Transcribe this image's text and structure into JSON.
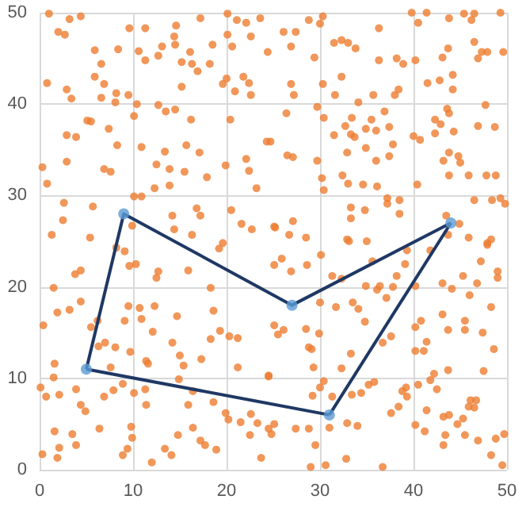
{
  "chart_data": {
    "type": "scatter",
    "xlim": [
      0,
      50
    ],
    "ylim": [
      0,
      50
    ],
    "xticks": [
      0,
      10,
      20,
      30,
      40,
      50
    ],
    "yticks": [
      0,
      10,
      20,
      30,
      40,
      50
    ],
    "grid": true,
    "marker": "circle",
    "series": [
      {
        "color": "#ed7d31",
        "x": [
          1.0,
          3.2,
          4.4,
          2.0,
          2.7,
          9.6,
          11.3,
          14.6,
          17.2,
          20.1,
          21.1,
          22.1,
          23.6,
          14.4,
          20.1,
          22.6,
          5.9,
          8.4,
          10.6,
          13.1,
          14.5,
          16.1,
          18.5,
          20.6,
          24.4,
          6.6,
          11.3,
          12.7,
          15.2,
          16.3,
          18.2,
          16.9,
          5.9,
          20.0,
          21.8,
          0.8,
          6.9,
          15.2,
          19.6,
          22.4,
          2.9,
          8.2,
          9.5,
          20.9,
          22.6,
          3.4,
          6.6,
          8.1,
          10.4,
          12.7,
          13.5,
          14.5,
          16.2,
          20.4,
          5.1,
          5.5,
          10.1,
          7.4,
          2.9,
          3.9,
          8.3,
          10.9,
          15.7,
          24.3,
          13.4,
          17.1,
          0.3,
          2.9,
          6.9,
          7.6,
          12.5,
          13.9,
          15.5,
          19.9,
          22.1,
          22.4,
          0.8,
          17.9,
          13.9,
          12.3,
          23.2,
          2.6,
          5.7,
          10.1,
          10.9,
          14.2,
          16.8,
          17.2,
          20.5,
          21.6,
          22.7,
          25.1,
          2.5,
          1.3,
          5.4,
          9.9,
          14.4,
          16.3,
          19.6,
          28.8,
          30.3,
          30.0,
          26.1,
          27.4,
          36.3,
          39.8,
          41.4,
          40.5,
          43.8,
          45.4,
          46.5,
          46.2,
          49.3,
          26.9,
          31.5,
          32.3,
          33.0,
          33.8,
          43.7,
          46.5,
          47.3,
          47.9,
          49.6,
          29.4,
          36.3,
          38.2,
          38.9,
          40.2,
          43.1,
          46.9,
          32.3,
          44.2,
          42.8,
          41.5,
          26.9,
          30.3,
          44.2,
          27.2,
          31.6,
          35.7,
          38.0,
          38.4,
          34.1,
          29.7,
          47.7,
          26.4,
          30.4,
          33.4,
          36.9,
          43.6,
          43.8,
          35.5,
          32.7,
          34.9,
          36.0,
          37.4,
          42.3,
          42.9,
          46.9,
          48.7,
          31.5,
          33.3,
          33.7,
          24.7,
          40.0,
          40.7,
          42.3,
          44.3,
          34.9,
          37.8,
          26.5,
          27.1,
          32.9,
          36.0,
          37.4,
          29.7,
          43.8,
          44.8,
          45.0,
          43.2,
          32.4,
          30.2,
          43.8,
          45.9,
          47.8,
          48.8,
          30.4,
          33.0,
          34.6,
          36.1,
          40.4,
          37.2,
          37.2,
          38.5,
          38.5,
          34.8,
          33.3,
          33.3,
          46.5,
          48.4,
          49.3,
          49.8,
          44.9,
          43.5,
          27.1,
          25.2,
          26.7,
          28.5,
          32.9,
          35.0,
          45.9,
          43.7,
          48.3,
          47.9,
          1.5,
          0.4,
          1.9,
          3.2,
          4.4,
          3.8,
          4.4,
          8.2,
          9.1,
          9.6,
          10.3,
          12.7,
          12.5,
          15.9,
          19.2,
          9.5,
          10.7,
          12.3,
          9.1,
          10.9,
          14.7,
          12.1,
          5.5,
          6.2,
          6.3,
          7.0,
          8.1,
          9.7,
          11.4,
          11.6,
          14.2,
          15.0,
          15.4,
          17.3,
          18.3,
          18.6,
          18.3,
          19.3,
          20.3,
          21.2,
          21.2,
          24.5,
          1.6,
          1.5,
          7.6,
          14.9,
          0.1,
          0.7,
          2.1,
          3.9,
          4.4,
          4.9,
          6.9,
          7.9,
          8.9,
          10.1,
          11.3,
          11.4,
          15.9,
          16.4,
          18.6,
          19.9,
          20.2,
          21.5,
          22.6,
          23.3,
          1.6,
          3.5,
          6.4,
          9.8,
          9.9,
          9.4,
          8.9,
          12.0,
          13.4,
          14.1,
          14.8,
          16.4,
          17.2,
          17.7,
          18.9,
          0.3,
          1.9,
          2.1,
          3.9,
          22.5,
          23.7,
          24.8,
          25.1,
          25.9,
          26.9,
          28.6,
          30.1,
          31.3,
          32.3,
          33.1,
          34.9,
          35.6,
          36.1,
          36.4,
          37.8,
          38.2,
          39.1,
          39.3,
          40.2,
          41.8,
          43.1,
          44.1,
          45.3,
          46.0,
          46.8,
          47.2,
          47.9,
          49.0,
          49.0,
          48.3,
          25.1,
          25.5,
          26.1,
          28.5,
          28.8,
          29.1,
          30.0,
          29.9,
          31.7,
          33.5,
          34.1,
          34.8,
          36.7,
          37.6,
          37.1,
          40.2,
          40.8,
          41.4,
          40.2,
          41.1,
          43.1,
          43.7,
          45.5,
          45.5,
          47.4,
          48.6,
          29.3,
          32.3,
          33.3,
          24.5,
          30.4,
          30.0,
          31.3,
          29.2,
          33.4,
          34.4,
          35.2,
          35.8,
          37.6,
          38.4,
          38.8,
          39.2,
          39.3,
          40.5,
          41.4,
          41.8,
          42.5,
          42.2,
          43.7,
          43.2,
          43.8,
          45.9,
          46.1,
          46.5,
          46.7,
          44.7,
          45.3,
          47.5,
          28.8,
          25.1,
          27.4,
          31.0,
          32.9,
          34.0,
          29.5,
          29.0,
          30.6,
          32.8,
          36.7,
          40.2,
          41.2,
          43.4,
          43.2,
          45.5,
          46.9,
          48.8,
          49.7,
          48.3,
          49.5,
          24.5
        ],
        "values": [
          49.9,
          49.3,
          49.6,
          47.9,
          47.6,
          48.3,
          48.3,
          48.6,
          49.4,
          49.9,
          49.2,
          48.9,
          49.4,
          47.4,
          47.6,
          47.4,
          45.9,
          46.0,
          45.8,
          46.3,
          46.5,
          45.7,
          46.5,
          46.3,
          45.7,
          44.4,
          44.8,
          45.3,
          44.6,
          44.4,
          44.4,
          43.6,
          43.0,
          42.8,
          43.0,
          42.3,
          42.2,
          41.9,
          42.2,
          42.3,
          41.6,
          41.2,
          41.0,
          41.4,
          41.0,
          40.6,
          40.7,
          40.2,
          40.0,
          39.9,
          39.2,
          39.4,
          38.3,
          38.3,
          38.2,
          38.1,
          38.7,
          37.3,
          36.6,
          36.4,
          35.5,
          35.3,
          35.5,
          35.9,
          34.8,
          34.7,
          33.1,
          33.7,
          32.9,
          32.6,
          33.4,
          32.9,
          32.6,
          33.3,
          34.0,
          32.7,
          31.3,
          32.0,
          31.1,
          30.8,
          30.8,
          29.2,
          28.8,
          29.9,
          29.9,
          27.8,
          28.6,
          27.8,
          28.4,
          26.9,
          26.3,
          26.6,
          27.3,
          25.7,
          25.4,
          26.7,
          26.3,
          25.7,
          24.8,
          49.2,
          49.6,
          48.8,
          47.9,
          47.9,
          48.3,
          50.0,
          50.0,
          48.9,
          49.4,
          49.9,
          49.9,
          49.2,
          50.0,
          46.3,
          46.7,
          47.0,
          46.7,
          46.1,
          46.1,
          46.8,
          45.7,
          45.7,
          45.7,
          45.1,
          44.8,
          45.0,
          44.4,
          44.8,
          45.1,
          45.0,
          43.0,
          43.2,
          42.6,
          42.3,
          42.2,
          42.2,
          41.6,
          41.0,
          41.0,
          41.0,
          41.0,
          41.6,
          40.2,
          39.7,
          39.9,
          39.0,
          38.5,
          38.5,
          39.2,
          39.5,
          39.0,
          38.3,
          37.6,
          37.3,
          37.1,
          37.5,
          38.3,
          37.8,
          37.6,
          37.5,
          36.6,
          36.7,
          36.4,
          35.9,
          36.5,
          36.1,
          36.8,
          37.0,
          35.2,
          35.6,
          34.4,
          34.2,
          34.7,
          33.8,
          34.3,
          33.8,
          34.7,
          34.3,
          33.6,
          33.8,
          32.2,
          31.9,
          32.2,
          32.2,
          32.2,
          32.2,
          30.6,
          31.3,
          31.2,
          31.0,
          31.2,
          29.7,
          29.1,
          29.5,
          28.0,
          28.4,
          28.7,
          27.5,
          29.5,
          29.5,
          29.7,
          29.1,
          26.9,
          27.8,
          27.2,
          26.5,
          25.7,
          25.4,
          25.2,
          25.0,
          25.4,
          25.7,
          25.2,
          24.8,
          19.9,
          15.8,
          17.2,
          17.5,
          18.4,
          21.4,
          21.8,
          24.3,
          23.9,
          22.3,
          22.5,
          21.7,
          21.0,
          21.8,
          24.2,
          17.9,
          17.7,
          17.9,
          16.3,
          16.5,
          16.8,
          15.1,
          15.6,
          16.3,
          13.5,
          13.9,
          13.4,
          12.9,
          11.9,
          11.6,
          13.9,
          12.5,
          11.4,
          12.1,
          14.3,
          17.4,
          19.9,
          15.2,
          14.6,
          14.4,
          11.2,
          10.3,
          11.6,
          10.1,
          11.2,
          9.9,
          9.0,
          8.0,
          8.2,
          8.8,
          7.1,
          6.4,
          8.0,
          8.7,
          9.4,
          8.4,
          8.8,
          7.1,
          7.1,
          8.6,
          7.4,
          6.2,
          5.5,
          5.2,
          6.1,
          5.1,
          4.2,
          3.9,
          4.5,
          4.7,
          3.5,
          2.3,
          1.6,
          0.8,
          2.3,
          1.6,
          3.8,
          4.6,
          3.2,
          2.7,
          2.2,
          1.7,
          1.3,
          2.4,
          2.7,
          3.8,
          1.3,
          3.9,
          22.4,
          23.1,
          21.7,
          22.4,
          23.5,
          21.2,
          20.9,
          25.0,
          20.1,
          22.8,
          19.7,
          20.1,
          20.0,
          21.2,
          22.5,
          24.0,
          20.1,
          24.0,
          20.4,
          19.8,
          21.2,
          19.1,
          20.4,
          22.8,
          24.6,
          21.7,
          21.0,
          17.8,
          15.8,
          14.8,
          15.3,
          15.4,
          13.4,
          13.2,
          18.3,
          14.9,
          17.8,
          18.3,
          17.6,
          16.2,
          13.9,
          14.6,
          18.8,
          15.6,
          16.3,
          14.0,
          13.0,
          13.0,
          17.0,
          15.3,
          16.3,
          15.3,
          15.0,
          13.2,
          11.2,
          11.1,
          12.7,
          10.2,
          9.7,
          9.0,
          8.0,
          8.1,
          8.2,
          8.4,
          9.3,
          9.6,
          6.2,
          6.9,
          8.6,
          9.0,
          8.0,
          9.3,
          6.5,
          9.8,
          8.8,
          10.5,
          10.9,
          5.8,
          6.0,
          6.9,
          7.6,
          6.8,
          7.6,
          5.0,
          5.6,
          10.8,
          4.5,
          5.0,
          4.5,
          4.6,
          5.1,
          4.8,
          2.7,
          0.3,
          0.5,
          1.2,
          0.3,
          4.9,
          4.2,
          3.8,
          2.7,
          3.8,
          3.2,
          3.4,
          3.9,
          1.6,
          0.5,
          4.5
        ]
      },
      {
        "type": "line",
        "color": "#1f3864",
        "marker": "none",
        "x": [
          5,
          9,
          27,
          44
        ],
        "values": [
          11,
          28,
          18,
          27
        ]
      },
      {
        "type": "line",
        "color": "#1f3864",
        "marker": "none",
        "x": [
          31,
          44
        ],
        "values": [
          6,
          27
        ]
      },
      {
        "type": "line",
        "color": "#1f3864",
        "marker": "none",
        "x": [
          5,
          31
        ],
        "values": [
          11,
          6
        ]
      },
      {
        "color": "#5b9bd5",
        "x": [
          5,
          9,
          27,
          44,
          31
        ],
        "values": [
          11,
          28,
          18,
          27,
          6
        ]
      }
    ]
  }
}
